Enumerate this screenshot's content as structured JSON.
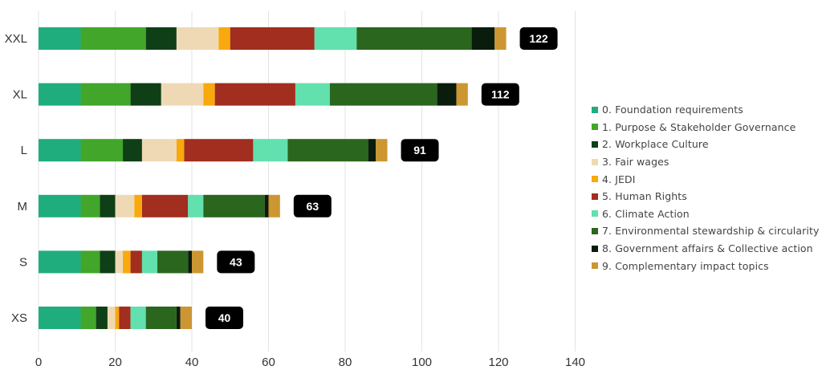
{
  "chart_data": {
    "type": "bar",
    "orientation": "horizontal",
    "stacked": true,
    "title": "",
    "xlabel": "",
    "ylabel": "",
    "xlim": [
      0,
      140
    ],
    "x_ticks": [
      0,
      20,
      40,
      60,
      80,
      100,
      120,
      140
    ],
    "grid": "vertical",
    "legend_position": "right",
    "categories": [
      "XXL",
      "XL",
      "L",
      "M",
      "S",
      "XS"
    ],
    "totals": [
      122,
      112,
      91,
      63,
      43,
      40
    ],
    "series": [
      {
        "name": "0. Foundation requirements",
        "color": "#20ad7e",
        "values": [
          11,
          11,
          11,
          11,
          11,
          11
        ]
      },
      {
        "name": "1. Purpose & Stakeholder Governance",
        "color": "#41a62a",
        "values": [
          17,
          13,
          11,
          5,
          5,
          4
        ]
      },
      {
        "name": "2. Workplace Culture",
        "color": "#0f3f17",
        "values": [
          8,
          8,
          5,
          4,
          4,
          3
        ]
      },
      {
        "name": "3. Fair wages",
        "color": "#efd9b5",
        "values": [
          11,
          11,
          9,
          5,
          2,
          2
        ]
      },
      {
        "name": "4. JEDI",
        "color": "#f8a90d",
        "values": [
          3,
          3,
          2,
          2,
          2,
          1
        ]
      },
      {
        "name": "5. Human Rights",
        "color": "#a12e1e",
        "values": [
          22,
          21,
          18,
          12,
          3,
          3
        ]
      },
      {
        "name": "6. Climate Action",
        "color": "#62e0ae",
        "values": [
          11,
          9,
          9,
          4,
          4,
          4
        ]
      },
      {
        "name": "7. Environmental stewardship & circularity",
        "color": "#2a661d",
        "values": [
          30,
          28,
          21,
          16,
          8,
          8
        ]
      },
      {
        "name": "8. Government affairs & Collective action",
        "color": "#0a1c0c",
        "values": [
          6,
          5,
          2,
          1,
          1,
          1
        ]
      },
      {
        "name": "9. Complementary impact topics",
        "color": "#cc9633",
        "values": [
          3,
          3,
          3,
          3,
          3,
          3
        ]
      }
    ]
  }
}
